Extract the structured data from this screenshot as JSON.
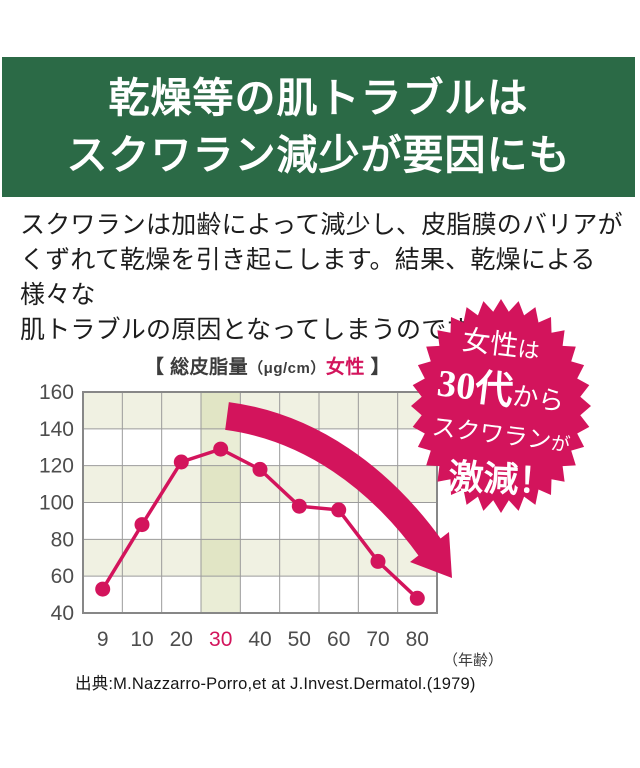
{
  "banner": {
    "lines": [
      "乾燥等の肌トラブルは",
      "スクワラン減少が要因にも"
    ]
  },
  "intro": {
    "lines": [
      "スクワランは加齢によって減少し、皮脂膜のバリアが",
      "くずれて乾燥を引き起こします。結果、乾燥による様々な",
      "肌トラブルの原因となってしまうのです。"
    ]
  },
  "chart_data": {
    "type": "line",
    "title": "【 総皮脂量（μg/cm）女性 】",
    "title_parts": {
      "open": "【 総皮脂量",
      "unit": "（μg/cm）",
      "highlight": "女性",
      "close": " 】"
    },
    "categories": [
      "9",
      "10",
      "20",
      "30",
      "40",
      "50",
      "60",
      "70",
      "80"
    ],
    "values": [
      53,
      88,
      122,
      129,
      118,
      98,
      96,
      68,
      48
    ],
    "highlight_category": "30",
    "ylim": [
      40,
      160
    ],
    "yticks": [
      160,
      140,
      120,
      100,
      80,
      60,
      40
    ],
    "age_label": "（年齢）",
    "grid": true,
    "legend": "none"
  },
  "badge": {
    "lines": [
      {
        "main": "女性",
        "small": "は"
      },
      {
        "main": "30代",
        "small": "から"
      },
      {
        "main": "スクワラン",
        "small": "が"
      },
      {
        "main": "激減！",
        "small": ""
      }
    ]
  },
  "source": "出典:M.Nazzarro-Porro,et at J.Invest.Dermatol.(1979)",
  "colors": {
    "banner_green": "#2b6a46",
    "accent_magenta": "#d3145c",
    "band": "#f0f1e2",
    "column_highlight": "#cdd59d",
    "grid": "#9b9b9b",
    "border": "#878787",
    "axis_text": "#4d4d4d",
    "body_text": "#1d1d1d"
  }
}
